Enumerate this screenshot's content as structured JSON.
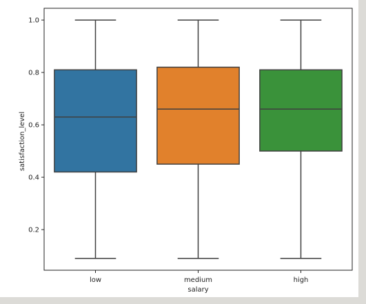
{
  "chart_data": {
    "type": "box",
    "xlabel": "salary",
    "ylabel": "satisfaction_level",
    "ylim": [
      0.045,
      1.045
    ],
    "yticks": [
      0.2,
      0.4,
      0.6,
      0.8,
      1.0
    ],
    "ytick_labels": [
      "0.2",
      "0.4",
      "0.6",
      "0.8",
      "1.0"
    ],
    "grid": false,
    "categories": [
      "low",
      "medium",
      "high"
    ],
    "boxes": [
      {
        "category": "low",
        "min": 0.09,
        "q1": 0.42,
        "median": 0.63,
        "q3": 0.81,
        "max": 1.0,
        "color": "#3274a1"
      },
      {
        "category": "medium",
        "min": 0.09,
        "q1": 0.45,
        "median": 0.66,
        "q3": 0.82,
        "max": 1.0,
        "color": "#e1812c"
      },
      {
        "category": "high",
        "min": 0.09,
        "q1": 0.5,
        "median": 0.66,
        "q3": 0.81,
        "max": 1.0,
        "color": "#3a923a"
      }
    ]
  }
}
